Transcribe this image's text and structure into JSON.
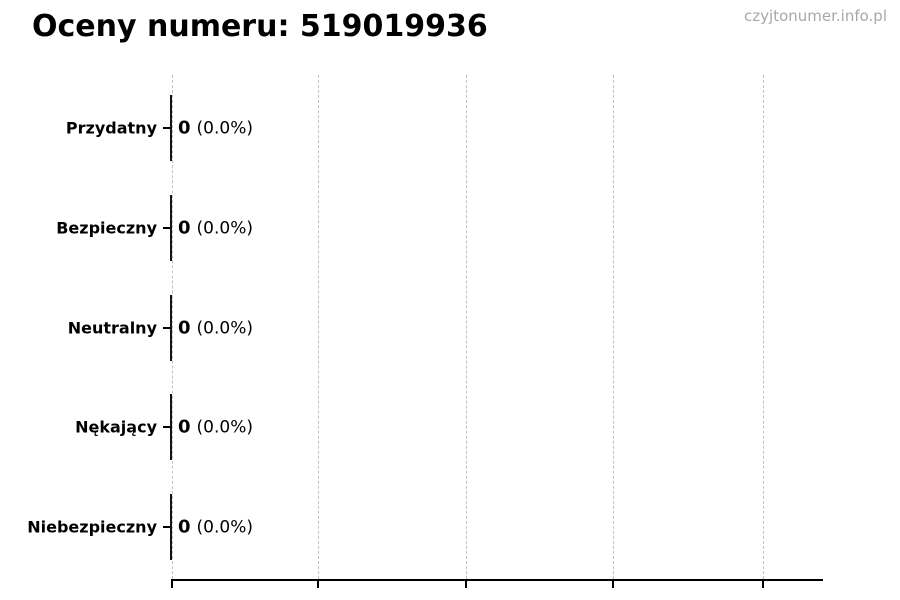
{
  "watermark": "czyjtonumer.info.pl",
  "chart_data": {
    "type": "bar",
    "orientation": "horizontal",
    "title": "Oceny numeru: 519019936",
    "categories": [
      "Przydatny",
      "Bezpieczny",
      "Neutralny",
      "Nękający",
      "Niebezpieczny"
    ],
    "values": [
      0,
      0,
      0,
      0,
      0
    ],
    "pct_labels": [
      "(0.0%)",
      "(0.0%)",
      "(0.0%)",
      "(0.0%)",
      "(0.0%)"
    ],
    "bar_label_format": "value (percent)",
    "xlabel": "",
    "ylabel": "",
    "xlim": [
      0,
      4.4
    ],
    "xticks": [
      0,
      1,
      2,
      3,
      4
    ],
    "xtick_labels_visible": false,
    "grid": "vertical dashed",
    "legend_position": "none"
  },
  "colors": {
    "background": "#ffffff",
    "text": "#000000",
    "grid": "#c2c2c2",
    "axis": "#000000",
    "bar_edge": "#141414",
    "watermark": "#a8a8a8"
  }
}
